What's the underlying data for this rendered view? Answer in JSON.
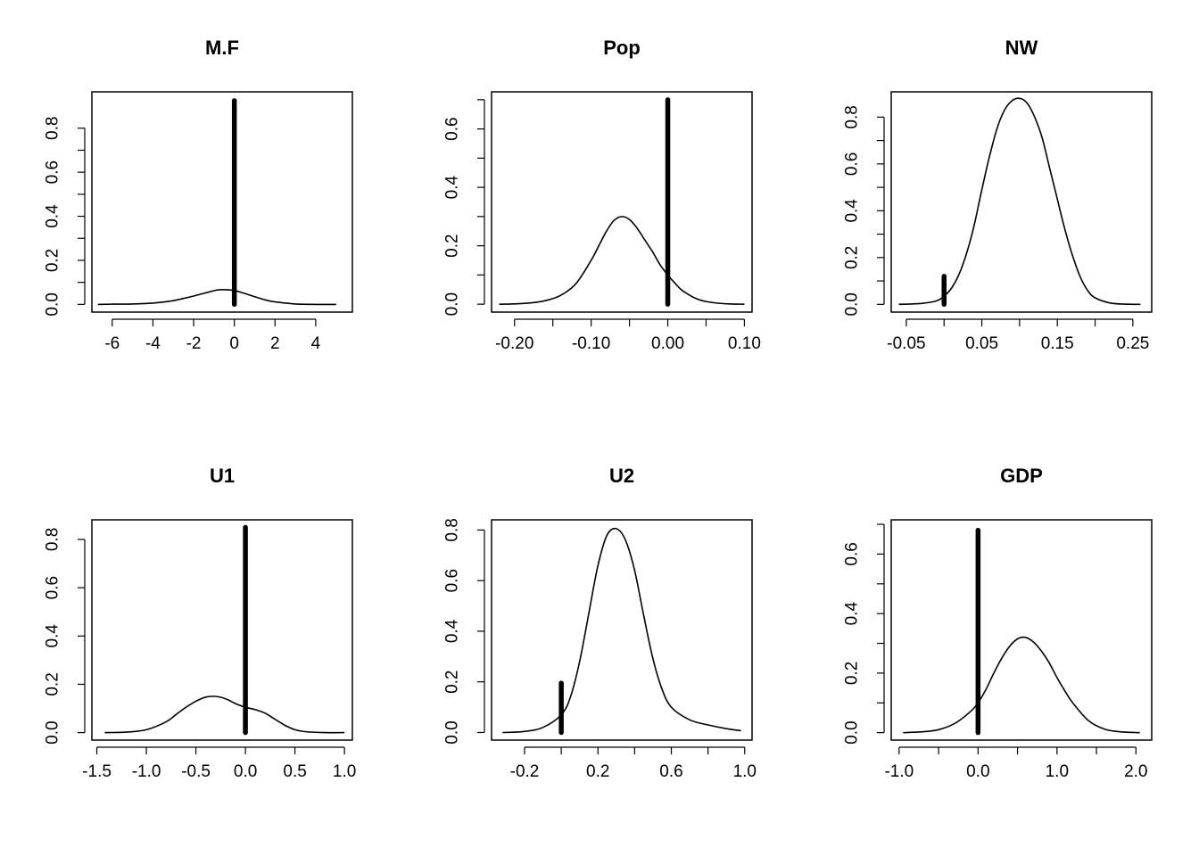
{
  "chart_data": [
    {
      "type": "line",
      "title": "M.F",
      "xlim": [
        -7.0,
        5.8
      ],
      "ylim": [
        -0.035,
        0.965
      ],
      "xticks": [
        -6,
        -4,
        -2,
        0,
        2,
        4
      ],
      "xtick_labels": [
        "-6",
        "-4",
        "-2",
        "0",
        "2",
        "4"
      ],
      "xminor_ticks": [],
      "yticks": [
        0.0,
        0.2,
        0.4,
        0.6,
        0.8
      ],
      "ytick_labels": [
        "0.0",
        "0.2",
        "0.4",
        "0.6",
        "0.8"
      ],
      "yminor_ticks": [
        0.1,
        0.3,
        0.5,
        0.7
      ],
      "density": {
        "x": [
          -6.7,
          -6,
          -5,
          -4,
          -3,
          -2,
          -1.5,
          -1,
          -0.8,
          -0.5,
          0,
          0.5,
          1,
          1.5,
          2,
          3,
          4,
          5
        ],
        "y": [
          0.0,
          0.001,
          0.002,
          0.006,
          0.017,
          0.038,
          0.05,
          0.062,
          0.066,
          0.067,
          0.063,
          0.05,
          0.035,
          0.021,
          0.011,
          0.002,
          0.0,
          0.0
        ]
      },
      "spike": {
        "x": 0.0,
        "y": 0.925
      }
    },
    {
      "type": "line",
      "title": "Pop",
      "xlim": [
        -0.23,
        0.11
      ],
      "ylim": [
        -0.027,
        0.727
      ],
      "xticks": [
        -0.2,
        -0.1,
        0.0,
        0.1
      ],
      "xtick_labels": [
        "-0.20",
        "-0.10",
        "0.00",
        "0.10"
      ],
      "xminor_ticks": [
        -0.15,
        -0.05,
        0.05
      ],
      "yticks": [
        0.0,
        0.2,
        0.4,
        0.6
      ],
      "ytick_labels": [
        "0.0",
        "0.2",
        "0.4",
        "0.6"
      ],
      "yminor_ticks": [
        0.1,
        0.3,
        0.5,
        0.7
      ],
      "density": {
        "x": [
          -0.22,
          -0.2,
          -0.18,
          -0.16,
          -0.14,
          -0.12,
          -0.1,
          -0.09,
          -0.08,
          -0.07,
          -0.06,
          -0.05,
          -0.04,
          -0.03,
          -0.02,
          -0.01,
          0.0,
          0.01,
          0.02,
          0.04,
          0.06,
          0.08,
          0.1
        ],
        "y": [
          0.0,
          0.001,
          0.004,
          0.012,
          0.03,
          0.07,
          0.15,
          0.2,
          0.25,
          0.287,
          0.3,
          0.29,
          0.26,
          0.22,
          0.18,
          0.135,
          0.1,
          0.07,
          0.045,
          0.016,
          0.005,
          0.001,
          0.0
        ]
      },
      "spike": {
        "x": 0.0,
        "y": 0.7
      }
    },
    {
      "type": "line",
      "title": "NW",
      "xlim": [
        -0.07,
        0.275
      ],
      "ylim": [
        -0.033,
        0.908
      ],
      "xticks": [
        -0.05,
        0.05,
        0.15,
        0.25
      ],
      "xtick_labels": [
        "-0.05",
        "0.05",
        "0.15",
        "0.25"
      ],
      "xminor_ticks": [
        0.0,
        0.1,
        0.2
      ],
      "yticks": [
        0.0,
        0.2,
        0.4,
        0.6,
        0.8
      ],
      "ytick_labels": [
        "0.0",
        "0.2",
        "0.4",
        "0.6",
        "0.8"
      ],
      "yminor_ticks": [
        0.1,
        0.3,
        0.5,
        0.7
      ],
      "density": {
        "x": [
          -0.06,
          -0.03,
          -0.01,
          0.0,
          0.01,
          0.02,
          0.03,
          0.04,
          0.05,
          0.06,
          0.07,
          0.08,
          0.09,
          0.1,
          0.11,
          0.12,
          0.13,
          0.14,
          0.15,
          0.16,
          0.17,
          0.18,
          0.19,
          0.2,
          0.22,
          0.24,
          0.26
        ],
        "y": [
          0.0,
          0.004,
          0.015,
          0.035,
          0.07,
          0.13,
          0.22,
          0.34,
          0.49,
          0.63,
          0.75,
          0.83,
          0.87,
          0.88,
          0.86,
          0.8,
          0.71,
          0.58,
          0.45,
          0.32,
          0.21,
          0.12,
          0.06,
          0.028,
          0.006,
          0.001,
          0.0
        ]
      },
      "spike": {
        "x": 0.0,
        "y": 0.12
      }
    },
    {
      "type": "line",
      "title": "U1",
      "xlim": [
        -1.55,
        1.08
      ],
      "ylim": [
        -0.031,
        0.881
      ],
      "xticks": [
        -1.5,
        -1.0,
        -0.5,
        0.0,
        0.5,
        1.0
      ],
      "xtick_labels": [
        "-1.5",
        "-1.0",
        "-0.5",
        "0.0",
        "0.5",
        "1.0"
      ],
      "xminor_ticks": [],
      "yticks": [
        0.0,
        0.2,
        0.4,
        0.6,
        0.8
      ],
      "ytick_labels": [
        "0.0",
        "0.2",
        "0.4",
        "0.6",
        "0.8"
      ],
      "yminor_ticks": [],
      "density": {
        "x": [
          -1.42,
          -1.2,
          -1.0,
          -0.8,
          -0.7,
          -0.6,
          -0.5,
          -0.4,
          -0.3,
          -0.2,
          -0.1,
          0.0,
          0.1,
          0.2,
          0.3,
          0.4,
          0.5,
          0.6,
          0.8,
          1.0
        ],
        "y": [
          0.0,
          0.002,
          0.012,
          0.045,
          0.075,
          0.105,
          0.13,
          0.147,
          0.15,
          0.14,
          0.12,
          0.105,
          0.095,
          0.08,
          0.055,
          0.03,
          0.012,
          0.004,
          0.0,
          0.0
        ]
      },
      "spike": {
        "x": 0.0,
        "y": 0.85
      }
    },
    {
      "type": "line",
      "title": "U2",
      "xlim": [
        -0.38,
        1.04
      ],
      "ylim": [
        -0.03,
        0.84
      ],
      "xticks": [
        -0.2,
        0.2,
        0.6,
        1.0
      ],
      "xtick_labels": [
        "-0.2",
        "0.2",
        "0.6",
        "1.0"
      ],
      "xminor_ticks": [
        0.0,
        0.4,
        0.8
      ],
      "yticks": [
        0.0,
        0.2,
        0.4,
        0.6,
        0.8
      ],
      "ytick_labels": [
        "0.0",
        "0.2",
        "0.4",
        "0.6",
        "0.8"
      ],
      "yminor_ticks": [],
      "density": {
        "x": [
          -0.32,
          -0.2,
          -0.1,
          0.0,
          0.05,
          0.1,
          0.15,
          0.2,
          0.25,
          0.3,
          0.35,
          0.4,
          0.45,
          0.5,
          0.55,
          0.6,
          0.7,
          0.8,
          0.9,
          0.98
        ],
        "y": [
          0.0,
          0.004,
          0.02,
          0.07,
          0.14,
          0.28,
          0.47,
          0.66,
          0.78,
          0.805,
          0.76,
          0.64,
          0.46,
          0.29,
          0.17,
          0.1,
          0.05,
          0.03,
          0.015,
          0.007
        ]
      },
      "spike": {
        "x": 0.0,
        "y": 0.195
      }
    },
    {
      "type": "line",
      "title": "GDP",
      "xlim": [
        -1.1,
        2.2
      ],
      "ylim": [
        -0.025,
        0.715
      ],
      "xticks": [
        -1.0,
        0.0,
        1.0,
        2.0
      ],
      "xtick_labels": [
        "-1.0",
        "0.0",
        "1.0",
        "2.0"
      ],
      "xminor_ticks": [
        -0.5,
        0.5,
        1.5
      ],
      "yticks": [
        0.0,
        0.2,
        0.4,
        0.6
      ],
      "ytick_labels": [
        "0.0",
        "0.2",
        "0.4",
        "0.6"
      ],
      "yminor_ticks": [
        0.1,
        0.3,
        0.5,
        0.7
      ],
      "density": {
        "x": [
          -0.95,
          -0.7,
          -0.5,
          -0.3,
          -0.1,
          0.0,
          0.1,
          0.2,
          0.3,
          0.4,
          0.5,
          0.6,
          0.7,
          0.8,
          0.9,
          1.0,
          1.1,
          1.2,
          1.4,
          1.6,
          1.8,
          2.05
        ],
        "y": [
          0.0,
          0.003,
          0.01,
          0.03,
          0.07,
          0.1,
          0.145,
          0.2,
          0.25,
          0.29,
          0.315,
          0.32,
          0.305,
          0.275,
          0.235,
          0.185,
          0.14,
          0.1,
          0.04,
          0.012,
          0.003,
          0.0
        ]
      },
      "spike": {
        "x": 0.0,
        "y": 0.68
      }
    }
  ]
}
